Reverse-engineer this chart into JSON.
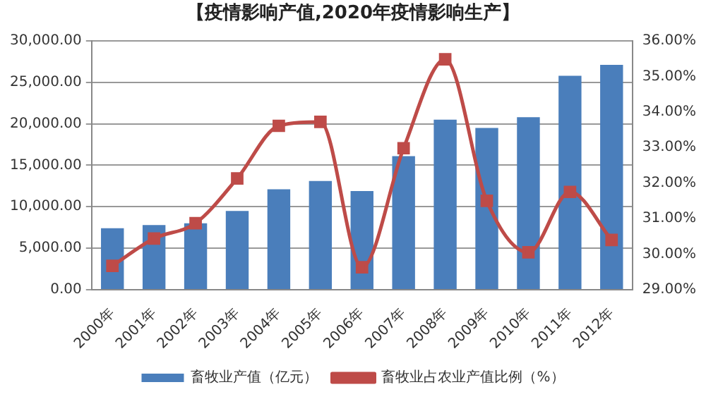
{
  "chart_data": {
    "type": "bar",
    "title": "【疫情影响产值,2020年疫情影响生产】",
    "categories": [
      "2000年",
      "2001年",
      "2002年",
      "2003年",
      "2004年",
      "2005年",
      "2006年",
      "2007年",
      "2008年",
      "2009年",
      "2010年",
      "2011年",
      "2012年"
    ],
    "series": [
      {
        "name": "畜牧业产值（亿元）",
        "color": "#4a7ebb",
        "values": [
          7400,
          7800,
          8000,
          9500,
          12100,
          13100,
          11900,
          16100,
          20500,
          19500,
          20800,
          25800,
          27100
        ]
      },
      {
        "name": "畜牧业占农业产值比例（%）",
        "type": "line",
        "axis": "y2",
        "color": "#be4b48",
        "marker": "square",
        "values": [
          29.67,
          30.44,
          30.87,
          32.13,
          33.61,
          33.72,
          29.63,
          32.98,
          35.48,
          31.5,
          30.05,
          31.75,
          30.4
        ]
      }
    ],
    "ylim": [
      0,
      30000
    ],
    "yticks": [
      {
        "value": 0,
        "label": "0.00"
      },
      {
        "value": 5000,
        "label": "5,000.00"
      },
      {
        "value": 10000,
        "label": "10,000.00"
      },
      {
        "value": 15000,
        "label": "15,000.00"
      },
      {
        "value": 20000,
        "label": "20,000.00"
      },
      {
        "value": 25000,
        "label": "25,000.00"
      },
      {
        "value": 30000,
        "label": "30,000.00"
      }
    ],
    "y2lim": [
      29,
      36
    ],
    "y2ticks": [
      {
        "value": 29,
        "label": "29.00%"
      },
      {
        "value": 30,
        "label": "30.00%"
      },
      {
        "value": 31,
        "label": "31.00%"
      },
      {
        "value": 32,
        "label": "32.00%"
      },
      {
        "value": 33,
        "label": "33.00%"
      },
      {
        "value": 34,
        "label": "34.00%"
      },
      {
        "value": 35,
        "label": "35.00%"
      },
      {
        "value": 36,
        "label": "36.00%"
      }
    ],
    "grid": "y",
    "legend": "bottom"
  }
}
